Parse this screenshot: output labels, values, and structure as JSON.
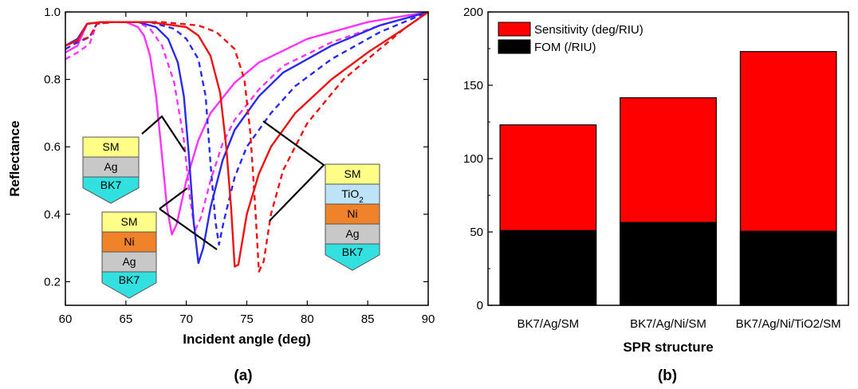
{
  "panel_labels": {
    "a": "(a)",
    "b": "(b)"
  },
  "chart_data": [
    {
      "type": "line",
      "panel": "(a)",
      "xlabel": "Incident angle (deg)",
      "ylabel": "Reflectance",
      "xlim": [
        60,
        90
      ],
      "ylim": [
        0.13,
        1.0
      ],
      "xticks": [
        "60",
        "65",
        "70",
        "75",
        "80",
        "85",
        "90"
      ],
      "yticks": [
        "0.2",
        "0.4",
        "0.6",
        "0.8",
        "1.0"
      ],
      "colors": {
        "magenta": "#ff33ff",
        "blue": "#2a2aee",
        "red": "#ee1111"
      },
      "series": [
        {
          "color": "magenta",
          "dash": false,
          "points": [
            [
              60,
              0.88
            ],
            [
              61,
              0.9
            ],
            [
              61.8,
              0.965
            ],
            [
              63,
              0.97
            ],
            [
              65,
              0.97
            ],
            [
              66,
              0.955
            ],
            [
              66.5,
              0.93
            ],
            [
              67,
              0.87
            ],
            [
              67.5,
              0.75
            ],
            [
              68,
              0.57
            ],
            [
              68.4,
              0.42
            ],
            [
              68.8,
              0.34
            ],
            [
              69.2,
              0.37
            ],
            [
              70,
              0.5
            ],
            [
              71,
              0.62
            ],
            [
              72,
              0.7
            ],
            [
              74,
              0.79
            ],
            [
              76,
              0.85
            ],
            [
              80,
              0.92
            ],
            [
              85,
              0.97
            ],
            [
              90,
              1.0
            ]
          ]
        },
        {
          "color": "magenta",
          "dash": true,
          "points": [
            [
              60,
              0.86
            ],
            [
              61,
              0.88
            ],
            [
              62,
              0.905
            ],
            [
              62.6,
              0.965
            ],
            [
              64,
              0.97
            ],
            [
              66,
              0.97
            ],
            [
              67,
              0.95
            ],
            [
              68,
              0.9
            ],
            [
              69,
              0.79
            ],
            [
              69.8,
              0.62
            ],
            [
              70.3,
              0.45
            ],
            [
              70.7,
              0.35
            ],
            [
              71.2,
              0.39
            ],
            [
              72,
              0.5
            ],
            [
              73,
              0.61
            ],
            [
              74,
              0.68
            ],
            [
              76,
              0.77
            ],
            [
              78,
              0.84
            ],
            [
              82,
              0.91
            ],
            [
              86,
              0.96
            ],
            [
              90,
              1.0
            ]
          ]
        },
        {
          "color": "blue",
          "dash": false,
          "points": [
            [
              60,
              0.9
            ],
            [
              61,
              0.92
            ],
            [
              61.8,
              0.965
            ],
            [
              63,
              0.97
            ],
            [
              66,
              0.97
            ],
            [
              67.5,
              0.955
            ],
            [
              68.5,
              0.92
            ],
            [
              69.3,
              0.85
            ],
            [
              69.8,
              0.75
            ],
            [
              70.2,
              0.58
            ],
            [
              70.6,
              0.38
            ],
            [
              71,
              0.255
            ],
            [
              71.4,
              0.3
            ],
            [
              72,
              0.42
            ],
            [
              73,
              0.56
            ],
            [
              74,
              0.65
            ],
            [
              76,
              0.75
            ],
            [
              78,
              0.82
            ],
            [
              82,
              0.9
            ],
            [
              86,
              0.96
            ],
            [
              90,
              1.0
            ]
          ]
        },
        {
          "color": "blue",
          "dash": true,
          "points": [
            [
              60,
              0.89
            ],
            [
              61,
              0.91
            ],
            [
              62,
              0.925
            ],
            [
              62.6,
              0.965
            ],
            [
              64,
              0.97
            ],
            [
              67,
              0.97
            ],
            [
              69,
              0.95
            ],
            [
              70,
              0.92
            ],
            [
              71,
              0.86
            ],
            [
              71.6,
              0.75
            ],
            [
              72,
              0.55
            ],
            [
              72.4,
              0.38
            ],
            [
              72.7,
              0.31
            ],
            [
              73.1,
              0.38
            ],
            [
              74,
              0.51
            ],
            [
              75,
              0.6
            ],
            [
              77,
              0.7
            ],
            [
              79,
              0.78
            ],
            [
              82,
              0.86
            ],
            [
              86,
              0.94
            ],
            [
              90,
              1.0
            ]
          ]
        },
        {
          "color": "red",
          "dash": false,
          "points": [
            [
              60,
              0.9
            ],
            [
              61,
              0.915
            ],
            [
              61.8,
              0.965
            ],
            [
              63,
              0.97
            ],
            [
              67,
              0.97
            ],
            [
              70,
              0.955
            ],
            [
              71,
              0.93
            ],
            [
              72,
              0.87
            ],
            [
              72.8,
              0.76
            ],
            [
              73.3,
              0.6
            ],
            [
              73.7,
              0.42
            ],
            [
              74,
              0.245
            ],
            [
              74.3,
              0.25
            ],
            [
              75,
              0.4
            ],
            [
              76,
              0.52
            ],
            [
              77,
              0.6
            ],
            [
              79,
              0.7
            ],
            [
              82,
              0.8
            ],
            [
              85,
              0.88
            ],
            [
              88,
              0.95
            ],
            [
              90,
              1.0
            ]
          ]
        },
        {
          "color": "red",
          "dash": true,
          "points": [
            [
              60,
              0.9
            ],
            [
              61,
              0.915
            ],
            [
              62,
              0.925
            ],
            [
              62.6,
              0.965
            ],
            [
              64,
              0.97
            ],
            [
              68,
              0.97
            ],
            [
              71,
              0.96
            ],
            [
              72.5,
              0.94
            ],
            [
              74,
              0.89
            ],
            [
              74.8,
              0.8
            ],
            [
              75.3,
              0.64
            ],
            [
              75.7,
              0.42
            ],
            [
              76,
              0.23
            ],
            [
              76.4,
              0.26
            ],
            [
              77,
              0.4
            ],
            [
              78,
              0.53
            ],
            [
              80,
              0.67
            ],
            [
              83,
              0.8
            ],
            [
              86,
              0.89
            ],
            [
              88,
              0.95
            ],
            [
              90,
              1.0
            ]
          ]
        }
      ],
      "insets": [
        {
          "layers": [
            {
              "text": "SM",
              "fill": "#ffff88"
            },
            {
              "text": "Ag",
              "fill": "#c8c8c8"
            },
            {
              "text": "BK7",
              "fill": "#33e0e0"
            }
          ]
        },
        {
          "layers": [
            {
              "text": "SM",
              "fill": "#ffff88"
            },
            {
              "text": "Ni",
              "fill": "#f0822a"
            },
            {
              "text": "Ag",
              "fill": "#c8c8c8"
            },
            {
              "text": "BK7",
              "fill": "#33e0e0"
            }
          ]
        },
        {
          "layers": [
            {
              "text": "SM",
              "fill": "#ffff88"
            },
            {
              "text": "TiO",
              "sub": "2",
              "fill": "#bde3f7"
            },
            {
              "text": "Ni",
              "fill": "#f0822a"
            },
            {
              "text": "Ag",
              "fill": "#c8c8c8"
            },
            {
              "text": "BK7",
              "fill": "#33e0e0"
            }
          ]
        }
      ]
    },
    {
      "type": "bar",
      "panel": "(b)",
      "xlabel": "SPR structure",
      "ylabel": "",
      "ylim": [
        0,
        200
      ],
      "yticks": [
        "0",
        "50",
        "100",
        "150",
        "200"
      ],
      "categories": [
        "BK7/Ag/SM",
        "BK7/Ag/Ni/SM",
        "BK7/Ag/Ni/TiO2/SM"
      ],
      "legend_position": "top-left",
      "series": [
        {
          "name": "Sensitivity (deg/RIU)",
          "color": "#ff0000",
          "values": [
            123,
            141.5,
            173
          ]
        },
        {
          "name": "FOM (/RIU)",
          "color": "#000000",
          "values": [
            51,
            56.5,
            50.5
          ]
        }
      ]
    }
  ]
}
